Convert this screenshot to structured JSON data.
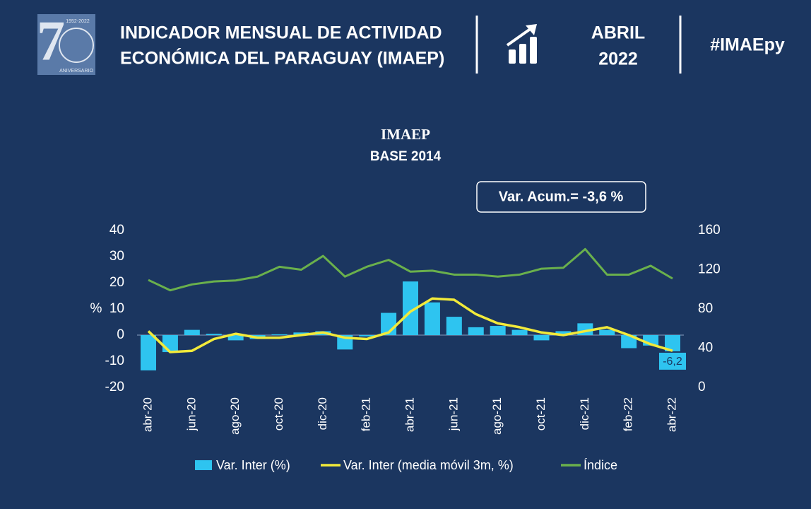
{
  "header": {
    "logo_years": "1952-2022",
    "logo_text": "ANIVERSARIO",
    "title_lines": [
      "INDICADOR MENSUAL DE ACTIVIDAD",
      "ECONÓMICA DEL PARAGUAY (IMAEP)"
    ],
    "period_lines": [
      "ABRIL",
      "2022"
    ],
    "hashtag": "#IMAEpy"
  },
  "chart_data": {
    "type": "bar-line",
    "title": "IMAEP",
    "subtitle": "BASE 2014",
    "annotation": "Var. Acum.= -3,6 %",
    "ylabel": "%",
    "categories": [
      "abr-20",
      null,
      "jun-20",
      null,
      "ago-20",
      null,
      "oct-20",
      null,
      "dic-20",
      null,
      "feb-21",
      null,
      "abr-21",
      null,
      "jun-21",
      null,
      "ago-21",
      null,
      "oct-21",
      null,
      "dic-21",
      null,
      "feb-22",
      null,
      "abr-22"
    ],
    "series": [
      {
        "name": "Var. Inter (%)",
        "type": "bar",
        "color": "#2ec4f0",
        "axis": "y",
        "values": [
          -13.5,
          -6.5,
          2,
          0.5,
          -2,
          -1.5,
          0.3,
          1,
          1.5,
          -5.5,
          -0.5,
          8.5,
          20.5,
          12.5,
          7,
          3,
          3.5,
          2,
          -2,
          1.5,
          4.5,
          2,
          -5,
          -4,
          -6.2
        ],
        "value_labels": [
          null,
          null,
          null,
          null,
          null,
          null,
          null,
          null,
          null,
          null,
          null,
          null,
          null,
          null,
          null,
          null,
          null,
          null,
          null,
          null,
          null,
          null,
          null,
          null,
          "-6,2"
        ]
      },
      {
        "name": "Var. Inter (media móvil 3m, %)",
        "type": "line",
        "color": "#f2ea3a",
        "axis": "y",
        "values": [
          1.5,
          -6.5,
          -6,
          -1.5,
          0.5,
          -1,
          -1,
          0,
          1,
          -1,
          -1.5,
          1,
          9,
          14,
          13.5,
          8,
          4.5,
          3,
          1,
          0,
          1.5,
          3,
          0,
          -3.5,
          -6
        ]
      },
      {
        "name": "Índice",
        "type": "line",
        "color": "#6ab04c",
        "axis": "y2",
        "values": [
          109.5,
          99,
          105,
          108,
          109,
          113,
          123,
          120,
          134,
          113,
          123,
          130,
          118,
          119,
          115,
          115,
          113,
          115,
          121,
          122,
          141,
          115,
          115,
          124,
          111
        ]
      }
    ],
    "ylim": [
      -20,
      40
    ],
    "yticks": [
      -20,
      -10,
      0,
      10,
      20,
      30,
      40
    ],
    "y2lim": [
      0,
      160
    ],
    "y2ticks": [
      0,
      40,
      80,
      120,
      160
    ]
  }
}
